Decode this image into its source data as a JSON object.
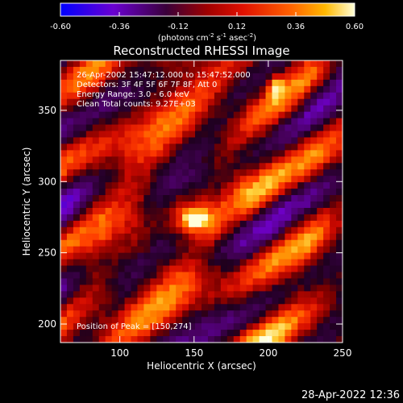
{
  "chart_data": {
    "type": "heatmap",
    "title": "Reconstructed RHESSI Image",
    "xlabel": "Heliocentric X (arcsec)",
    "ylabel": "Heliocentric Y (arcsec)",
    "xlim": [
      60,
      250
    ],
    "ylim": [
      187,
      385
    ],
    "x_ticks": [
      "100",
      "150",
      "200",
      "250"
    ],
    "y_ticks": [
      "200",
      "250",
      "300",
      "350"
    ],
    "colorbar": {
      "ticks": [
        "-0.60",
        "-0.36",
        "-0.12",
        "0.12",
        "0.36",
        "0.60"
      ],
      "range": [
        -0.6,
        0.6
      ],
      "unit_label": "(photons cm",
      "unit_exp1": "-2",
      "unit_mid": " s",
      "unit_exp2": "-1",
      "unit_mid2": " asec",
      "unit_exp3": "-2",
      "unit_end": ")"
    },
    "annotations": [
      "26-Apr-2002 15:47:12.000 to 15:47:52.000",
      "Detectors: 3F 4F 5F 6F 7F 8F, Att 0",
      "Energy Range: 3.0 - 6.0 keV",
      "Clean     Total counts: 9.27E+03"
    ],
    "peak_label": "Position of Peak = [150,274]",
    "peak": [
      150,
      274
    ],
    "peak_value": 0.6,
    "secondary_source": [
      205,
      368
    ]
  },
  "footer_timestamp": "28-Apr-2022 12:36",
  "colors": {
    "background": "#000000",
    "text": "#ffffff",
    "colorbar_stops": [
      "#0000ff",
      "#8a00c8",
      "#300030",
      "#c80000",
      "#ff3000",
      "#ff9800",
      "#ffffc0"
    ]
  }
}
